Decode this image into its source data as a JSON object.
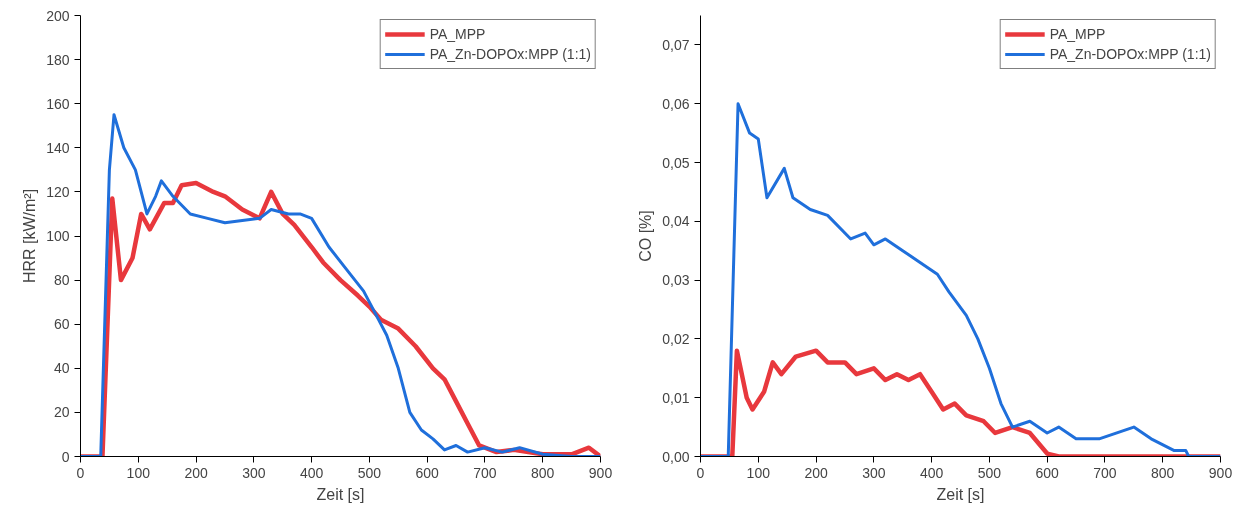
{
  "chart_data": [
    {
      "type": "line",
      "xlabel": "Zeit [s]",
      "ylabel": "HRR [kW/m²]",
      "xlim": [
        0,
        900
      ],
      "ylim": [
        0,
        200
      ],
      "xticks": [
        0,
        100,
        200,
        300,
        400,
        500,
        600,
        700,
        800,
        900
      ],
      "yticks": [
        0,
        20,
        40,
        60,
        80,
        100,
        120,
        140,
        160,
        180,
        200
      ],
      "grid": false,
      "legend": "top right",
      "marker": "none",
      "line_style": "solid",
      "series": [
        {
          "name": "PA_MPP",
          "color": "#e8383d",
          "x": [
            0,
            38,
            55,
            70,
            90,
            105,
            120,
            145,
            160,
            175,
            200,
            230,
            250,
            280,
            310,
            330,
            350,
            370,
            400,
            420,
            450,
            480,
            500,
            520,
            550,
            580,
            610,
            630,
            650,
            670,
            690,
            720,
            750,
            800,
            850,
            880,
            900
          ],
          "values": [
            0,
            0,
            117,
            80,
            90,
            110,
            103,
            115,
            115,
            123,
            124,
            120,
            118,
            112,
            108,
            120,
            110,
            105,
            95,
            88,
            80,
            73,
            68,
            62,
            58,
            50,
            40,
            35,
            25,
            15,
            5,
            2,
            3,
            1,
            1,
            4,
            0
          ]
        },
        {
          "name": "PA_Zn-DOPOx:MPP (1:1)",
          "color": "#1f6fdb",
          "x": [
            0,
            35,
            50,
            58,
            75,
            95,
            115,
            130,
            140,
            160,
            190,
            220,
            250,
            280,
            310,
            330,
            360,
            380,
            400,
            430,
            460,
            490,
            510,
            530,
            550,
            570,
            590,
            610,
            630,
            650,
            670,
            700,
            730,
            760,
            800,
            850,
            900
          ],
          "values": [
            0,
            0,
            130,
            155,
            140,
            130,
            110,
            118,
            125,
            118,
            110,
            108,
            106,
            107,
            108,
            112,
            110,
            110,
            108,
            95,
            85,
            75,
            65,
            55,
            40,
            20,
            12,
            8,
            3,
            5,
            2,
            4,
            2,
            4,
            1,
            0,
            0
          ]
        }
      ]
    },
    {
      "type": "line",
      "xlabel": "Zeit [s]",
      "ylabel": "CO [%]",
      "xlim": [
        0,
        900
      ],
      "ylim": [
        0,
        0.075
      ],
      "xticks": [
        0,
        100,
        200,
        300,
        400,
        500,
        600,
        700,
        800,
        900
      ],
      "yticks": [
        {
          "value": 0,
          "label": "0,00"
        },
        {
          "value": 0.01,
          "label": "0,01"
        },
        {
          "value": 0.02,
          "label": "0,02"
        },
        {
          "value": 0.03,
          "label": "0,03"
        },
        {
          "value": 0.04,
          "label": "0,04"
        },
        {
          "value": 0.05,
          "label": "0,05"
        },
        {
          "value": 0.06,
          "label": "0,06"
        },
        {
          "value": 0.07,
          "label": "0,07"
        }
      ],
      "grid": false,
      "legend": "top right",
      "marker": "none",
      "line_style": "solid",
      "series": [
        {
          "name": "PA_MPP",
          "color": "#e8383d",
          "x": [
            0,
            55,
            63,
            80,
            90,
            110,
            125,
            140,
            165,
            200,
            220,
            250,
            270,
            300,
            320,
            340,
            360,
            380,
            400,
            420,
            440,
            460,
            490,
            510,
            540,
            570,
            600,
            620,
            900
          ],
          "values": [
            0,
            0,
            0.018,
            0.01,
            0.008,
            0.011,
            0.016,
            0.014,
            0.017,
            0.018,
            0.016,
            0.016,
            0.014,
            0.015,
            0.013,
            0.014,
            0.013,
            0.014,
            0.011,
            0.008,
            0.009,
            0.007,
            0.006,
            0.004,
            0.005,
            0.004,
            0.0005,
            0,
            0
          ]
        },
        {
          "name": "PA_Zn-DOPOx:MPP (1:1)",
          "color": "#1f6fdb",
          "x": [
            0,
            48,
            65,
            85,
            100,
            115,
            145,
            160,
            190,
            220,
            260,
            285,
            300,
            320,
            350,
            380,
            410,
            430,
            460,
            480,
            500,
            520,
            540,
            570,
            600,
            620,
            650,
            690,
            750,
            780,
            820,
            840,
            845,
            900
          ],
          "values": [
            0,
            0,
            0.06,
            0.055,
            0.054,
            0.044,
            0.049,
            0.044,
            0.042,
            0.041,
            0.037,
            0.038,
            0.036,
            0.037,
            0.035,
            0.033,
            0.031,
            0.028,
            0.024,
            0.02,
            0.015,
            0.009,
            0.005,
            0.006,
            0.004,
            0.005,
            0.003,
            0.003,
            0.005,
            0.003,
            0.001,
            0.001,
            0,
            0
          ]
        }
      ]
    }
  ]
}
